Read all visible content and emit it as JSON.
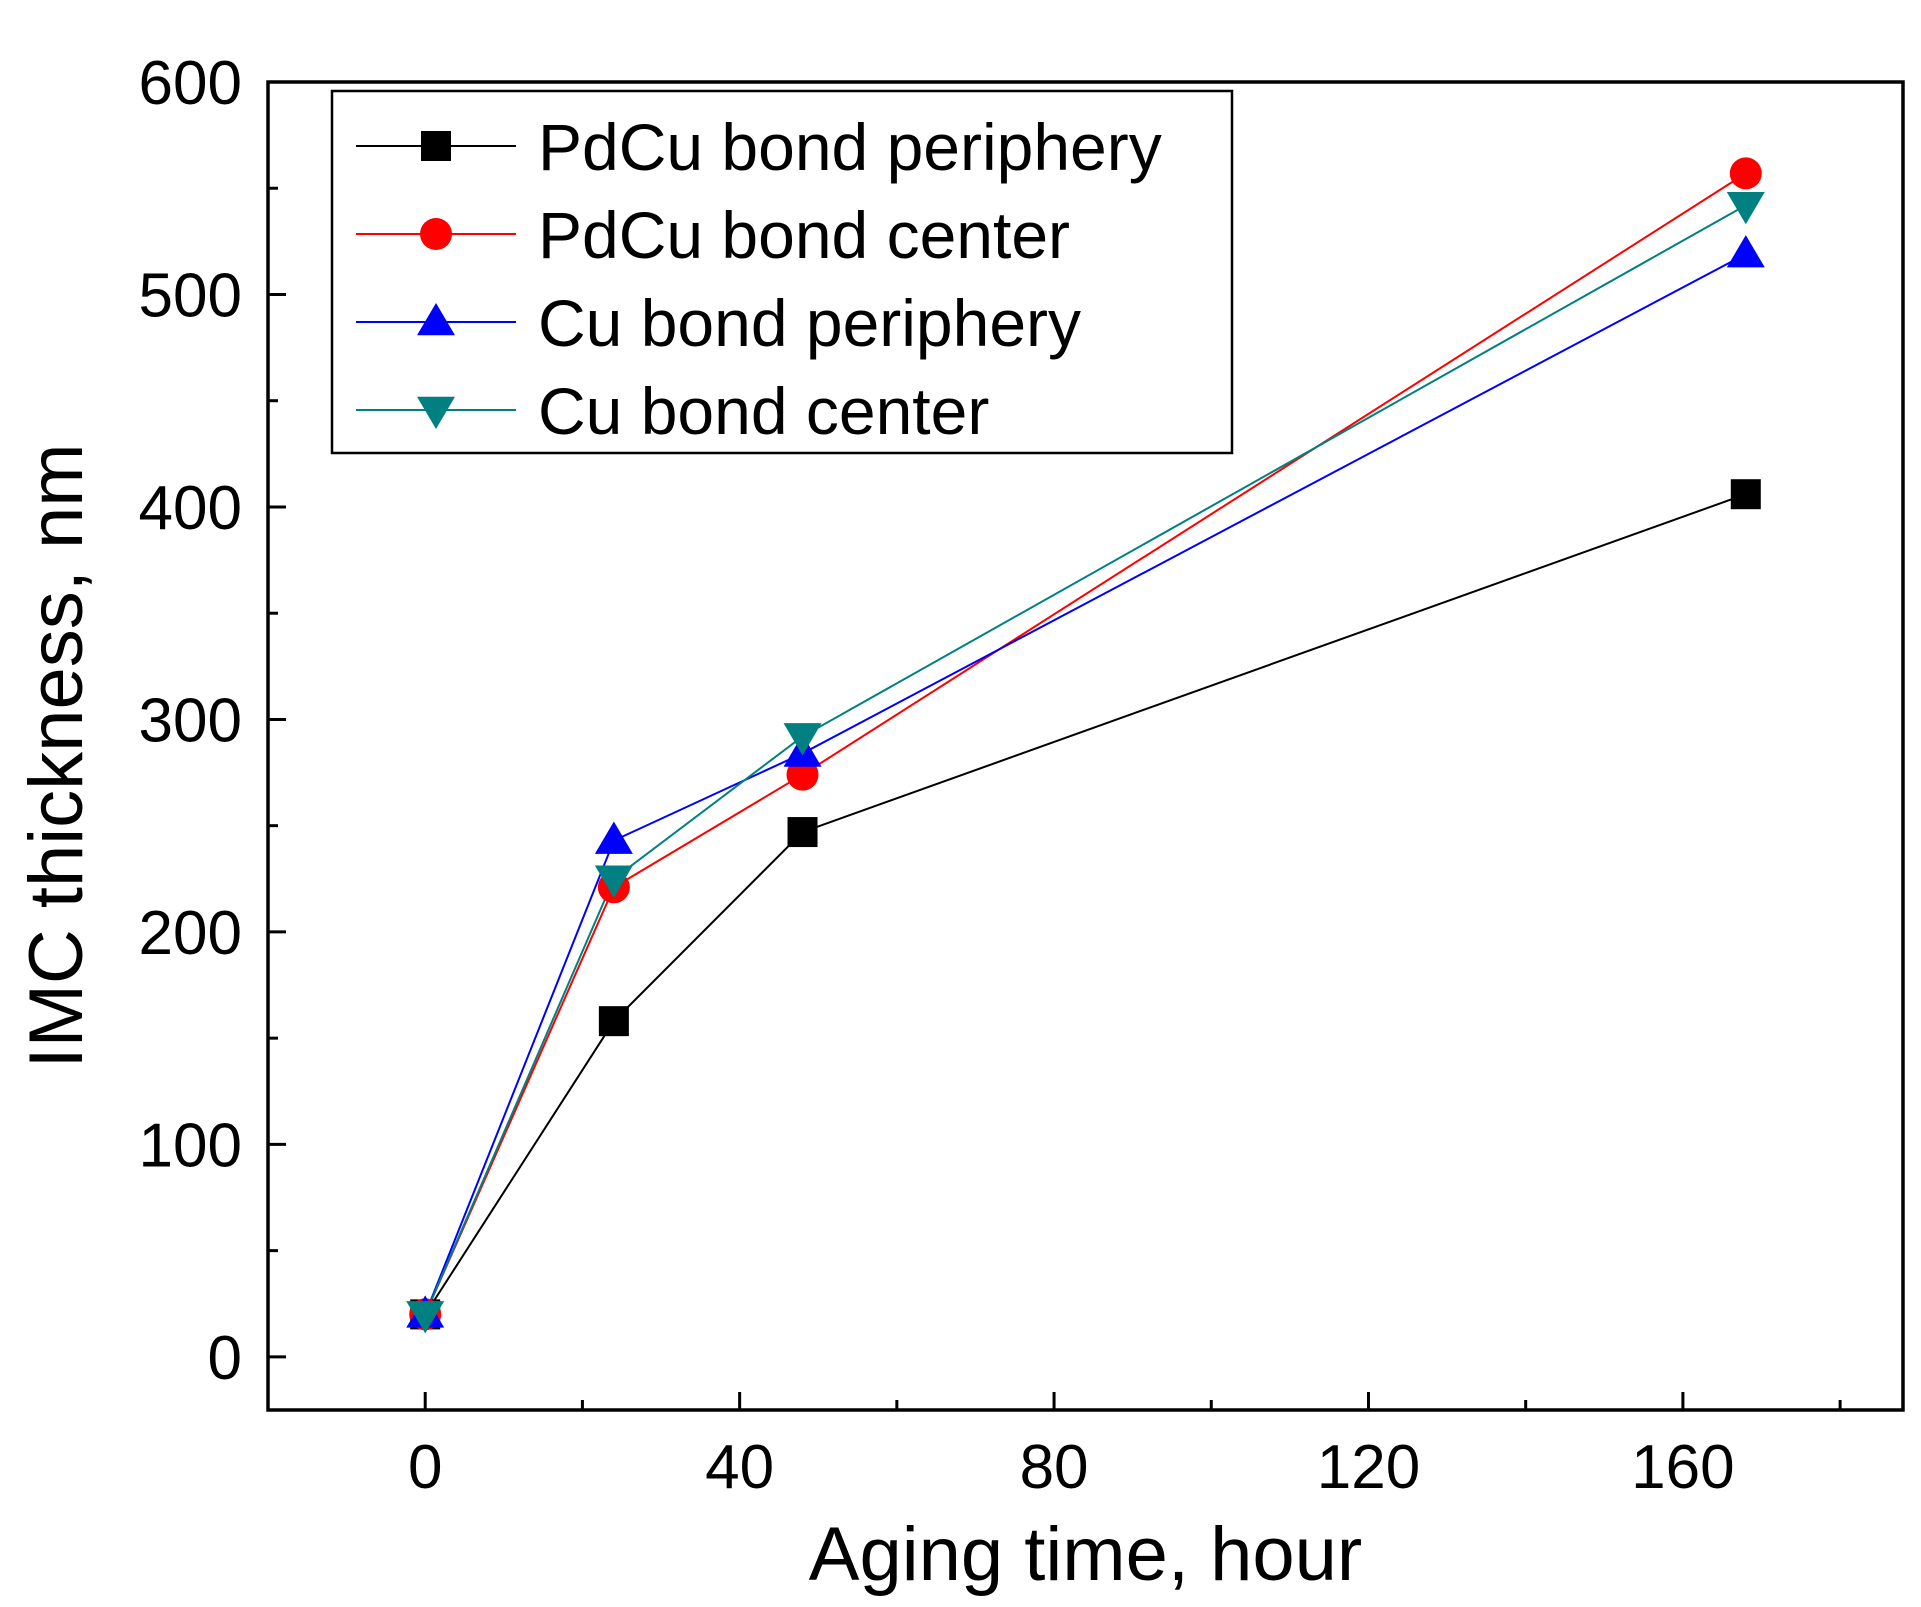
{
  "chart_data": {
    "type": "line",
    "title": "",
    "xlabel": "Aging time, hour",
    "ylabel": "IMC thickness, nm",
    "xlim": [
      -20,
      188
    ],
    "ylim": [
      -25,
      600
    ],
    "xticks": [
      0,
      40,
      80,
      120,
      160
    ],
    "xtick_labels": [
      "0",
      "40",
      "80",
      "120",
      "160"
    ],
    "yticks": [
      0,
      100,
      200,
      300,
      400,
      500,
      600
    ],
    "ytick_labels": [
      "0",
      "100",
      "200",
      "300",
      "400",
      "500",
      "600"
    ],
    "grid": false,
    "legend_position": "top-left",
    "x": [
      0,
      24,
      48,
      168
    ],
    "series": [
      {
        "name": "PdCu bond periphery",
        "color": "#000000",
        "marker": "square",
        "values": [
          20,
          158,
          247,
          406
        ]
      },
      {
        "name": "PdCu bond center",
        "color": "#ff0000",
        "marker": "circle",
        "values": [
          20,
          221,
          274,
          557
        ]
      },
      {
        "name": "Cu bond periphery",
        "color": "#0000ff",
        "marker": "triangle-up",
        "values": [
          20,
          243,
          284,
          519
        ]
      },
      {
        "name": "Cu bond center",
        "color": "#008080",
        "marker": "triangle-down",
        "values": [
          20,
          225,
          292,
          542
        ]
      }
    ]
  }
}
